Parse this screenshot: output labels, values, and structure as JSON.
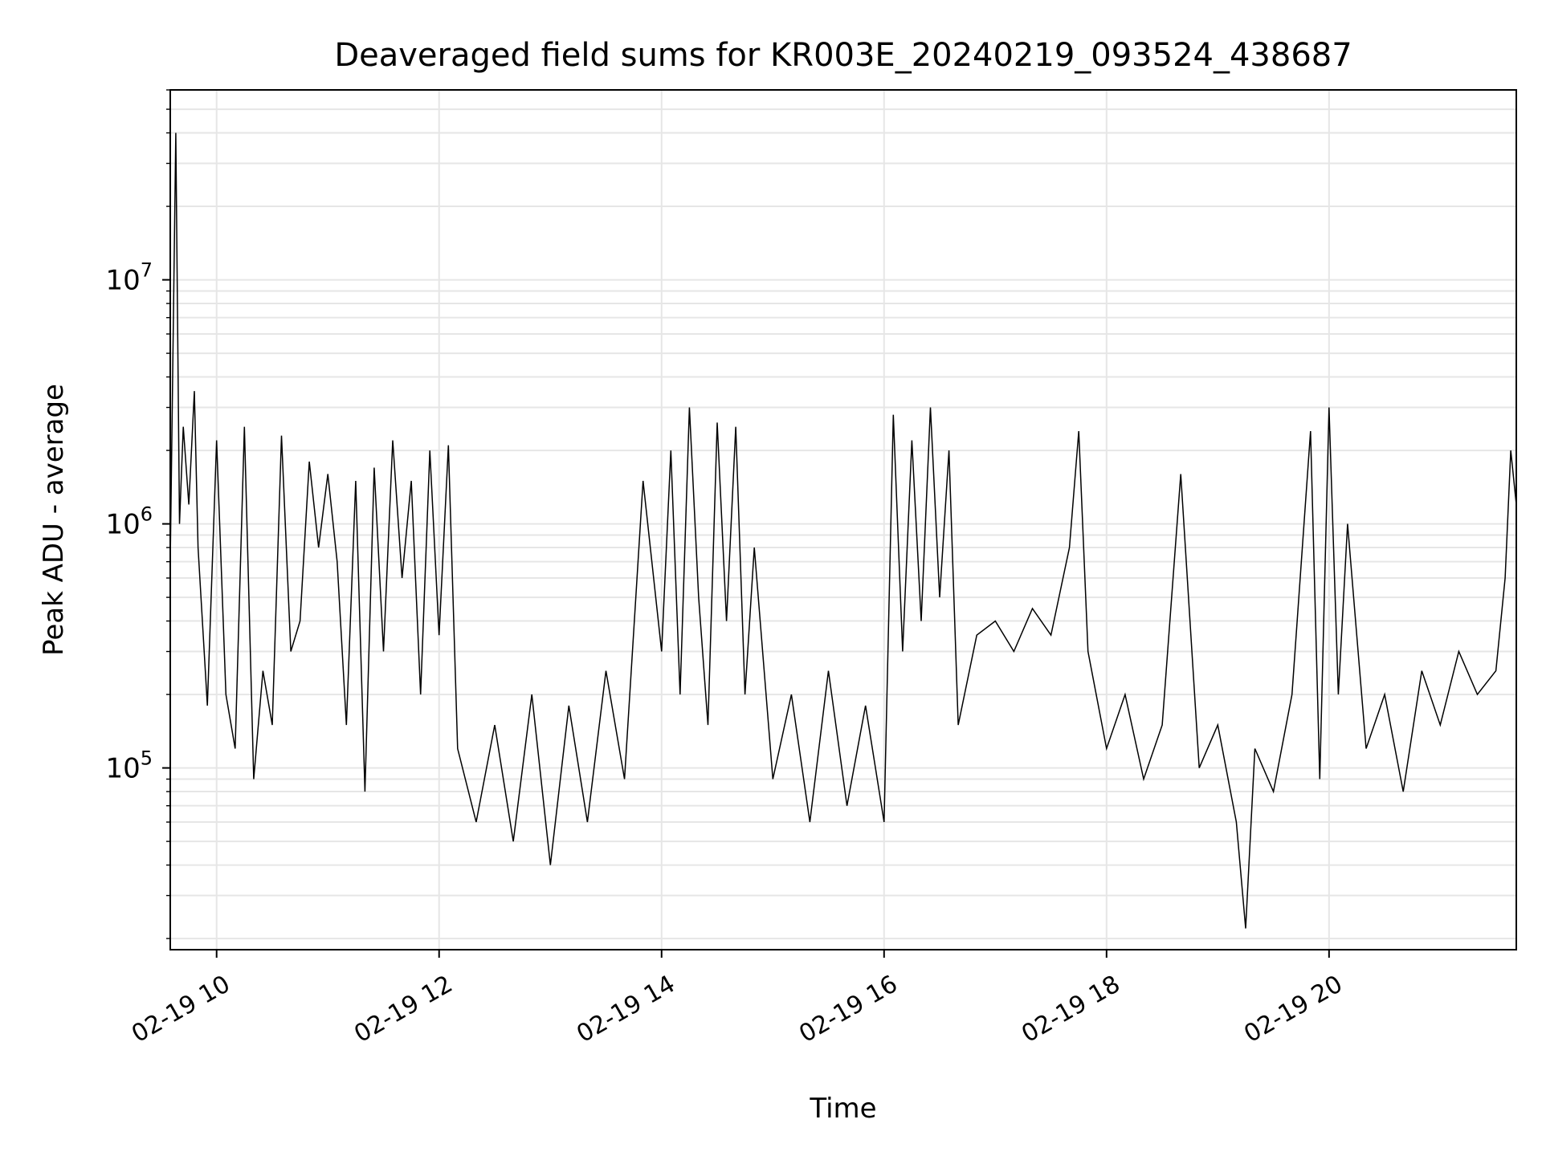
{
  "chart_data": {
    "type": "line",
    "title": "Deaveraged field sums for KR003E_20240219_093524_438687",
    "xlabel": "Time",
    "ylabel": "Peak ADU - average",
    "x_ticks": [
      {
        "value": "2024-02-19T10:00",
        "label": "02-19 10"
      },
      {
        "value": "2024-02-19T12:00",
        "label": "02-19 12"
      },
      {
        "value": "2024-02-19T14:00",
        "label": "02-19 14"
      },
      {
        "value": "2024-02-19T16:00",
        "label": "02-19 16"
      },
      {
        "value": "2024-02-19T18:00",
        "label": "02-19 18"
      },
      {
        "value": "2024-02-19T20:00",
        "label": "02-19 20"
      }
    ],
    "y_ticks": [
      {
        "value": 100000,
        "base": "10",
        "exp": "5"
      },
      {
        "value": 1000000,
        "base": "10",
        "exp": "6"
      },
      {
        "value": 10000000,
        "base": "10",
        "exp": "7"
      }
    ],
    "xlim": [
      "2024-02-19T09:35",
      "2024-02-19T21:41"
    ],
    "ylim": [
      18000,
      60000000
    ],
    "yscale": "log",
    "grid": true,
    "line_color": "#000000",
    "series": [
      {
        "values": [
          [
            "2024-02-19T09:35",
            700000
          ],
          [
            "2024-02-19T09:38",
            40000000
          ],
          [
            "2024-02-19T09:40",
            1000000
          ],
          [
            "2024-02-19T09:42",
            2500000
          ],
          [
            "2024-02-19T09:45",
            1200000
          ],
          [
            "2024-02-19T09:48",
            3500000
          ],
          [
            "2024-02-19T09:50",
            800000
          ],
          [
            "2024-02-19T09:55",
            180000
          ],
          [
            "2024-02-19T10:00",
            2200000
          ],
          [
            "2024-02-19T10:05",
            200000
          ],
          [
            "2024-02-19T10:10",
            120000
          ],
          [
            "2024-02-19T10:15",
            2500000
          ],
          [
            "2024-02-19T10:20",
            90000
          ],
          [
            "2024-02-19T10:25",
            250000
          ],
          [
            "2024-02-19T10:30",
            150000
          ],
          [
            "2024-02-19T10:35",
            2300000
          ],
          [
            "2024-02-19T10:40",
            300000
          ],
          [
            "2024-02-19T10:45",
            400000
          ],
          [
            "2024-02-19T10:50",
            1800000
          ],
          [
            "2024-02-19T10:55",
            800000
          ],
          [
            "2024-02-19T11:00",
            1600000
          ],
          [
            "2024-02-19T11:05",
            700000
          ],
          [
            "2024-02-19T11:10",
            150000
          ],
          [
            "2024-02-19T11:15",
            1500000
          ],
          [
            "2024-02-19T11:20",
            80000
          ],
          [
            "2024-02-19T11:25",
            1700000
          ],
          [
            "2024-02-19T11:30",
            300000
          ],
          [
            "2024-02-19T11:35",
            2200000
          ],
          [
            "2024-02-19T11:40",
            600000
          ],
          [
            "2024-02-19T11:45",
            1500000
          ],
          [
            "2024-02-19T11:50",
            200000
          ],
          [
            "2024-02-19T11:55",
            2000000
          ],
          [
            "2024-02-19T12:00",
            350000
          ],
          [
            "2024-02-19T12:05",
            2100000
          ],
          [
            "2024-02-19T12:10",
            120000
          ],
          [
            "2024-02-19T12:20",
            60000
          ],
          [
            "2024-02-19T12:30",
            150000
          ],
          [
            "2024-02-19T12:40",
            50000
          ],
          [
            "2024-02-19T12:50",
            200000
          ],
          [
            "2024-02-19T13:00",
            40000
          ],
          [
            "2024-02-19T13:10",
            180000
          ],
          [
            "2024-02-19T13:20",
            60000
          ],
          [
            "2024-02-19T13:30",
            250000
          ],
          [
            "2024-02-19T13:40",
            90000
          ],
          [
            "2024-02-19T13:50",
            1500000
          ],
          [
            "2024-02-19T14:00",
            300000
          ],
          [
            "2024-02-19T14:05",
            2000000
          ],
          [
            "2024-02-19T14:10",
            200000
          ],
          [
            "2024-02-19T14:15",
            3000000
          ],
          [
            "2024-02-19T14:20",
            500000
          ],
          [
            "2024-02-19T14:25",
            150000
          ],
          [
            "2024-02-19T14:30",
            2600000
          ],
          [
            "2024-02-19T14:35",
            400000
          ],
          [
            "2024-02-19T14:40",
            2500000
          ],
          [
            "2024-02-19T14:45",
            200000
          ],
          [
            "2024-02-19T14:50",
            800000
          ],
          [
            "2024-02-19T15:00",
            90000
          ],
          [
            "2024-02-19T15:10",
            200000
          ],
          [
            "2024-02-19T15:20",
            60000
          ],
          [
            "2024-02-19T15:30",
            250000
          ],
          [
            "2024-02-19T15:40",
            70000
          ],
          [
            "2024-02-19T15:50",
            180000
          ],
          [
            "2024-02-19T16:00",
            60000
          ],
          [
            "2024-02-19T16:05",
            2800000
          ],
          [
            "2024-02-19T16:10",
            300000
          ],
          [
            "2024-02-19T16:15",
            2200000
          ],
          [
            "2024-02-19T16:20",
            400000
          ],
          [
            "2024-02-19T16:25",
            3000000
          ],
          [
            "2024-02-19T16:30",
            500000
          ],
          [
            "2024-02-19T16:35",
            2000000
          ],
          [
            "2024-02-19T16:40",
            150000
          ],
          [
            "2024-02-19T16:50",
            350000
          ],
          [
            "2024-02-19T17:00",
            400000
          ],
          [
            "2024-02-19T17:10",
            300000
          ],
          [
            "2024-02-19T17:20",
            450000
          ],
          [
            "2024-02-19T17:30",
            350000
          ],
          [
            "2024-02-19T17:40",
            800000
          ],
          [
            "2024-02-19T17:45",
            2400000
          ],
          [
            "2024-02-19T17:50",
            300000
          ],
          [
            "2024-02-19T18:00",
            120000
          ],
          [
            "2024-02-19T18:10",
            200000
          ],
          [
            "2024-02-19T18:20",
            90000
          ],
          [
            "2024-02-19T18:30",
            150000
          ],
          [
            "2024-02-19T18:40",
            1600000
          ],
          [
            "2024-02-19T18:50",
            100000
          ],
          [
            "2024-02-19T19:00",
            150000
          ],
          [
            "2024-02-19T19:10",
            60000
          ],
          [
            "2024-02-19T19:15",
            22000
          ],
          [
            "2024-02-19T19:20",
            120000
          ],
          [
            "2024-02-19T19:30",
            80000
          ],
          [
            "2024-02-19T19:40",
            200000
          ],
          [
            "2024-02-19T19:50",
            2400000
          ],
          [
            "2024-02-19T19:55",
            90000
          ],
          [
            "2024-02-19T20:00",
            3000000
          ],
          [
            "2024-02-19T20:05",
            200000
          ],
          [
            "2024-02-19T20:10",
            1000000
          ],
          [
            "2024-02-19T20:20",
            120000
          ],
          [
            "2024-02-19T20:30",
            200000
          ],
          [
            "2024-02-19T20:40",
            80000
          ],
          [
            "2024-02-19T20:50",
            250000
          ],
          [
            "2024-02-19T21:00",
            150000
          ],
          [
            "2024-02-19T21:10",
            300000
          ],
          [
            "2024-02-19T21:20",
            200000
          ],
          [
            "2024-02-19T21:30",
            250000
          ],
          [
            "2024-02-19T21:35",
            600000
          ],
          [
            "2024-02-19T21:38",
            2000000
          ],
          [
            "2024-02-19T21:41",
            1200000
          ]
        ]
      }
    ]
  }
}
